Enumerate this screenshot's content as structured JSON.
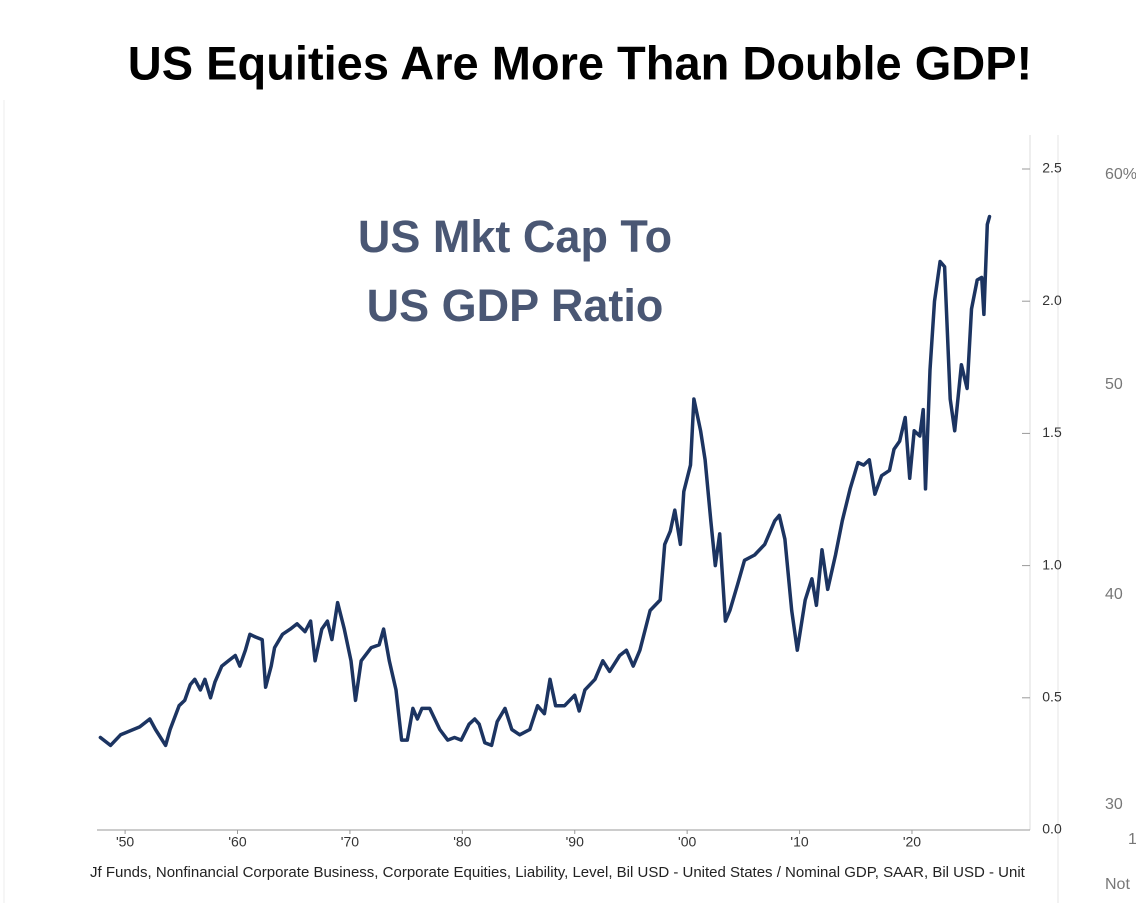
{
  "chart_data": {
    "type": "line",
    "title": "US Equities Are More Than Double GDP!",
    "annotation": [
      "US Mkt Cap To",
      "US GDP Ratio"
    ],
    "source": "Jf Funds, Nonfinancial Corporate Business, Corporate Equities, Liability, Level, Bil USD - United States / Nominal GDP, SAAR, Bil USD - Unit",
    "color": "#1c3461",
    "x": [
      1947.8,
      1948.7,
      1949.6,
      1951.3,
      1952.2,
      1952.7,
      1953.6,
      1954.0,
      1954.8,
      1955.3,
      1955.8,
      1956.2,
      1956.7,
      1957.1,
      1957.6,
      1958.0,
      1958.6,
      1959.2,
      1959.8,
      1960.2,
      1960.7,
      1961.1,
      1961.6,
      1962.2,
      1962.5,
      1963.0,
      1963.3,
      1964.0,
      1964.7,
      1965.3,
      1966.0,
      1966.5,
      1966.9,
      1967.5,
      1968.0,
      1968.4,
      1968.9,
      1969.5,
      1970.1,
      1970.5,
      1971.0,
      1971.9,
      1972.6,
      1973.0,
      1973.5,
      1974.1,
      1974.6,
      1975.1,
      1975.6,
      1976.0,
      1976.4,
      1977.1,
      1978.0,
      1978.7,
      1979.3,
      1979.9,
      1980.6,
      1981.1,
      1981.5,
      1982.0,
      1982.6,
      1983.1,
      1983.8,
      1984.4,
      1985.1,
      1986.0,
      1986.7,
      1987.3,
      1987.8,
      1988.3,
      1989.1,
      1990.0,
      1990.4,
      1990.9,
      1991.8,
      1992.5,
      1993.1,
      1994.0,
      1994.6,
      1995.2,
      1995.8,
      1996.7,
      1997.6,
      1998.0,
      1998.5,
      1998.9,
      1999.4,
      1999.7,
      2000.3,
      2000.6,
      2001.2,
      2001.6,
      2002.1,
      2002.5,
      2002.9,
      2003.4,
      2003.8,
      2004.5,
      2005.1,
      2006.0,
      2006.9,
      2007.8,
      2008.2,
      2008.7,
      2009.3,
      2009.8,
      2010.5,
      2011.1,
      2011.5,
      2012.0,
      2012.5,
      2013.2,
      2013.8,
      2014.5,
      2015.2,
      2015.7,
      2016.2,
      2016.7,
      2017.3,
      2018.0,
      2018.4,
      2018.9,
      2019.4,
      2019.8,
      2020.2,
      2020.7,
      2021.0,
      2021.2,
      2021.6,
      2022.0,
      2022.5,
      2022.9,
      2023.4,
      2023.8,
      2024.4,
      2024.9,
      2025.3,
      2025.8,
      2026.2,
      2026.4,
      2026.7,
      2026.9
    ],
    "values": [
      0.35,
      0.32,
      0.36,
      0.39,
      0.42,
      0.38,
      0.32,
      0.38,
      0.47,
      0.49,
      0.55,
      0.57,
      0.53,
      0.57,
      0.5,
      0.56,
      0.62,
      0.64,
      0.66,
      0.62,
      0.68,
      0.74,
      0.73,
      0.72,
      0.54,
      0.62,
      0.69,
      0.74,
      0.76,
      0.78,
      0.75,
      0.79,
      0.64,
      0.76,
      0.79,
      0.72,
      0.86,
      0.76,
      0.64,
      0.49,
      0.64,
      0.69,
      0.7,
      0.76,
      0.64,
      0.53,
      0.34,
      0.34,
      0.46,
      0.42,
      0.46,
      0.46,
      0.38,
      0.34,
      0.35,
      0.34,
      0.4,
      0.42,
      0.4,
      0.33,
      0.32,
      0.41,
      0.46,
      0.38,
      0.36,
      0.38,
      0.47,
      0.44,
      0.57,
      0.47,
      0.47,
      0.51,
      0.45,
      0.53,
      0.57,
      0.64,
      0.6,
      0.66,
      0.68,
      0.62,
      0.68,
      0.83,
      0.87,
      1.08,
      1.13,
      1.21,
      1.08,
      1.28,
      1.38,
      1.63,
      1.51,
      1.4,
      1.17,
      1.0,
      1.12,
      0.79,
      0.83,
      0.93,
      1.02,
      1.04,
      1.08,
      1.17,
      1.19,
      1.1,
      0.83,
      0.68,
      0.87,
      0.95,
      0.85,
      1.06,
      0.91,
      1.04,
      1.17,
      1.29,
      1.39,
      1.38,
      1.4,
      1.27,
      1.34,
      1.36,
      1.44,
      1.47,
      1.56,
      1.33,
      1.51,
      1.49,
      1.59,
      1.29,
      1.74,
      2.0,
      2.15,
      2.13,
      1.63,
      1.51,
      1.76,
      1.67,
      1.97,
      2.08,
      2.09,
      1.95,
      2.29,
      2.32
    ],
    "xlim": [
      1947.5,
      2030.5
    ],
    "xticks": [
      {
        "value": 1950,
        "label": "'50"
      },
      {
        "value": 1960,
        "label": "'60"
      },
      {
        "value": 1970,
        "label": "'70"
      },
      {
        "value": 1980,
        "label": "'80"
      },
      {
        "value": 1990,
        "label": "'90"
      },
      {
        "value": 2000,
        "label": "'00"
      },
      {
        "value": 2010,
        "label": "'10"
      },
      {
        "value": 2020,
        "label": "'20"
      }
    ],
    "ylim": [
      0,
      2.5
    ],
    "yticks": [
      {
        "value": 0,
        "label": "0.0"
      },
      0.5,
      {
        "value": 1,
        "label": "1.0"
      },
      1.5,
      {
        "value": 2,
        "label": "2.0"
      },
      2.5
    ],
    "side_labels": [
      "60%",
      "50",
      "40",
      "30",
      "1",
      "Not"
    ]
  }
}
